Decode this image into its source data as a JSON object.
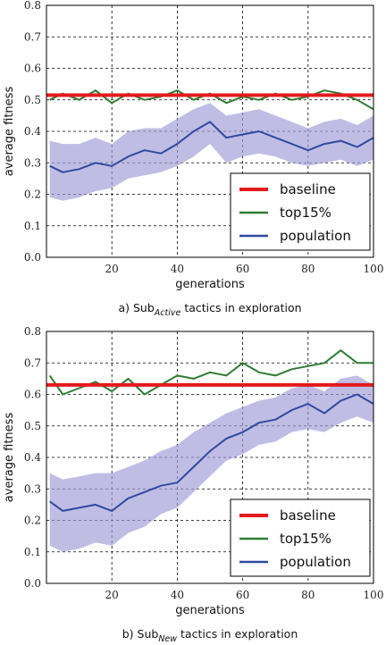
{
  "chart_data": [
    {
      "type": "line",
      "title": "",
      "caption_prefix": "a) Sub",
      "caption_subscript": "Active",
      "caption_suffix": " tactics in exploration",
      "xlabel": "generations",
      "ylabel": "average fitness",
      "xlim": [
        0,
        100
      ],
      "ylim": [
        0.0,
        0.8
      ],
      "xticks": [
        "20",
        "40",
        "60",
        "80",
        "100"
      ],
      "xtick_values": [
        20,
        40,
        60,
        80,
        100
      ],
      "yticks": [
        "0.0",
        "0.1",
        "0.2",
        "0.3",
        "0.4",
        "0.5",
        "0.6",
        "0.7",
        "0.8"
      ],
      "ytick_values": [
        0.0,
        0.1,
        0.2,
        0.3,
        0.4,
        0.5,
        0.6,
        0.7,
        0.8
      ],
      "grid": true,
      "legend_position": "lower-right",
      "baseline": 0.515,
      "series": [
        {
          "name": "baseline",
          "color": "#e31a1c",
          "x": [
            0,
            100
          ],
          "values": [
            0.515,
            0.515
          ]
        },
        {
          "name": "top15%",
          "color": "#2e7d32",
          "x": [
            1,
            5,
            10,
            15,
            20,
            25,
            30,
            35,
            40,
            45,
            50,
            55,
            60,
            65,
            70,
            75,
            80,
            85,
            90,
            95,
            100
          ],
          "values": [
            0.5,
            0.52,
            0.5,
            0.53,
            0.49,
            0.52,
            0.5,
            0.51,
            0.53,
            0.5,
            0.52,
            0.49,
            0.51,
            0.5,
            0.52,
            0.5,
            0.51,
            0.53,
            0.52,
            0.5,
            0.47
          ]
        },
        {
          "name": "population",
          "color": "#2f4aa0",
          "x": [
            1,
            5,
            10,
            15,
            20,
            25,
            30,
            35,
            40,
            45,
            50,
            55,
            60,
            65,
            70,
            75,
            80,
            85,
            90,
            95,
            100
          ],
          "values": [
            0.29,
            0.27,
            0.28,
            0.3,
            0.29,
            0.32,
            0.34,
            0.33,
            0.36,
            0.4,
            0.43,
            0.38,
            0.39,
            0.4,
            0.38,
            0.36,
            0.34,
            0.36,
            0.37,
            0.35,
            0.38
          ],
          "lower": [
            0.19,
            0.18,
            0.19,
            0.21,
            0.22,
            0.25,
            0.26,
            0.27,
            0.29,
            0.32,
            0.36,
            0.3,
            0.32,
            0.33,
            0.32,
            0.3,
            0.29,
            0.3,
            0.31,
            0.29,
            0.31
          ],
          "upper": [
            0.37,
            0.36,
            0.36,
            0.38,
            0.36,
            0.4,
            0.41,
            0.41,
            0.44,
            0.47,
            0.49,
            0.45,
            0.46,
            0.47,
            0.45,
            0.43,
            0.41,
            0.43,
            0.44,
            0.42,
            0.45
          ]
        }
      ]
    },
    {
      "type": "line",
      "title": "",
      "caption_prefix": "b) Sub",
      "caption_subscript": "New",
      "caption_suffix": " tactics in exploration",
      "xlabel": "generations",
      "ylabel": "average fitness",
      "xlim": [
        0,
        100
      ],
      "ylim": [
        0.0,
        0.8
      ],
      "xticks": [
        "20",
        "40",
        "60",
        "80",
        "100"
      ],
      "xtick_values": [
        20,
        40,
        60,
        80,
        100
      ],
      "yticks": [
        "0.0",
        "0.1",
        "0.2",
        "0.3",
        "0.4",
        "0.5",
        "0.6",
        "0.7",
        "0.8"
      ],
      "ytick_values": [
        0.0,
        0.1,
        0.2,
        0.3,
        0.4,
        0.5,
        0.6,
        0.7,
        0.8
      ],
      "grid": true,
      "legend_position": "lower-right",
      "baseline": 0.63,
      "series": [
        {
          "name": "baseline",
          "color": "#e31a1c",
          "x": [
            0,
            100
          ],
          "values": [
            0.63,
            0.63
          ]
        },
        {
          "name": "top15%",
          "color": "#2e7d32",
          "x": [
            1,
            5,
            10,
            15,
            20,
            25,
            30,
            35,
            40,
            45,
            50,
            55,
            60,
            65,
            70,
            75,
            80,
            85,
            90,
            95,
            100
          ],
          "values": [
            0.66,
            0.6,
            0.62,
            0.64,
            0.61,
            0.65,
            0.6,
            0.63,
            0.66,
            0.65,
            0.67,
            0.66,
            0.7,
            0.67,
            0.66,
            0.68,
            0.69,
            0.7,
            0.74,
            0.7,
            0.7
          ]
        },
        {
          "name": "population",
          "color": "#2f4aa0",
          "x": [
            1,
            5,
            10,
            15,
            20,
            25,
            30,
            35,
            40,
            45,
            50,
            55,
            60,
            65,
            70,
            75,
            80,
            85,
            90,
            95,
            100
          ],
          "values": [
            0.26,
            0.23,
            0.24,
            0.25,
            0.23,
            0.27,
            0.29,
            0.31,
            0.32,
            0.37,
            0.42,
            0.46,
            0.48,
            0.51,
            0.52,
            0.55,
            0.57,
            0.54,
            0.58,
            0.6,
            0.57
          ],
          "lower": [
            0.12,
            0.1,
            0.11,
            0.13,
            0.12,
            0.16,
            0.18,
            0.22,
            0.24,
            0.29,
            0.34,
            0.39,
            0.41,
            0.44,
            0.45,
            0.48,
            0.49,
            0.48,
            0.51,
            0.53,
            0.51
          ],
          "upper": [
            0.35,
            0.33,
            0.34,
            0.35,
            0.35,
            0.37,
            0.39,
            0.42,
            0.44,
            0.48,
            0.51,
            0.54,
            0.56,
            0.58,
            0.59,
            0.62,
            0.63,
            0.61,
            0.65,
            0.66,
            0.63
          ]
        }
      ]
    }
  ]
}
